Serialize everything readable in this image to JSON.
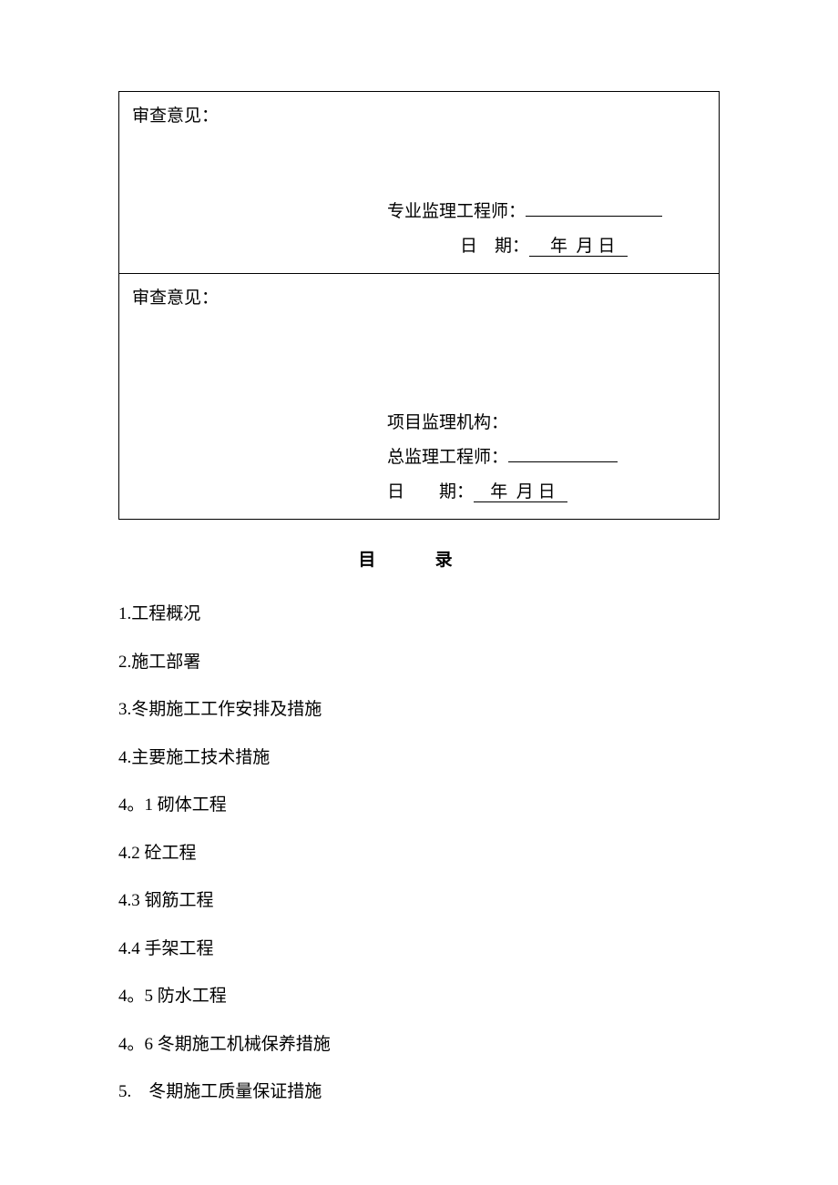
{
  "form": {
    "section1": {
      "opinion_label": "审查意见：",
      "engineer_label": "专业监理工程师：",
      "engineer_value": "",
      "date_label_char1": "日",
      "date_label_char2": "期：",
      "date_year_label": "年",
      "date_month_label": "月",
      "date_day_label": "日"
    },
    "section2": {
      "opinion_label": "审查意见：",
      "org_label": "项目监理机构：",
      "chief_label": "总监理工程师：",
      "chief_value": "",
      "date_label_char1": "日",
      "date_label_char2": "期：",
      "date_year_label": "年",
      "date_month_label": "月",
      "date_day_label": "日"
    }
  },
  "toc": {
    "title": "目 录",
    "items": [
      "1.工程概况",
      "2.施工部署",
      "3.冬期施工工作安排及措施",
      "4.主要施工技术措施",
      "4。1 砌体工程",
      "4.2 砼工程",
      "4.3 钢筋工程",
      "4.4 手架工程",
      "4。5 防水工程",
      "4。6 冬期施工机械保养措施",
      "5.　冬期施工质量保证措施"
    ]
  },
  "colors": {
    "background": "#ffffff",
    "text": "#000000",
    "border": "#000000"
  }
}
